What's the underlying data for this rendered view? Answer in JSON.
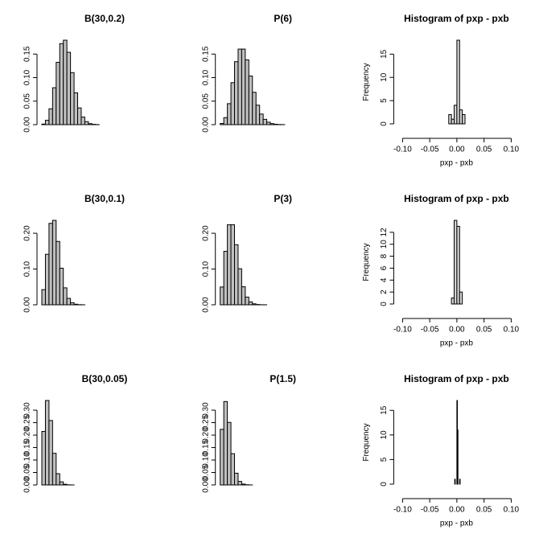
{
  "chart_data": [
    {
      "type": "bar",
      "title": "B(30,0.2)",
      "color": "#c0c0c0",
      "values": [
        0.0012,
        0.0093,
        0.0337,
        0.0785,
        0.1325,
        0.1723,
        0.1795,
        0.1538,
        0.1106,
        0.0676,
        0.0355,
        0.0161,
        0.0064,
        0.0022,
        0.0007,
        0.0002,
        0,
        0,
        0,
        0,
        0,
        0,
        0,
        0,
        0,
        0,
        0,
        0,
        0,
        0,
        0
      ],
      "ylim": [
        0,
        0.1795
      ],
      "yticks": [
        {
          "value": 0,
          "label": "0.00"
        },
        {
          "value": 0.05,
          "label": "0.05"
        },
        {
          "value": 0.1,
          "label": "0.10"
        },
        {
          "value": 0.15,
          "label": "0.15"
        }
      ]
    },
    {
      "type": "bar",
      "title": "P(6)",
      "color": "#c0c0c0",
      "values": [
        0.0025,
        0.0149,
        0.0446,
        0.0892,
        0.1339,
        0.1606,
        0.1606,
        0.1377,
        0.1033,
        0.0688,
        0.0413,
        0.0225,
        0.0113,
        0.0052,
        0.0022,
        0.0009,
        0.0003,
        0.0001,
        0,
        0,
        0,
        0,
        0,
        0,
        0,
        0,
        0,
        0,
        0,
        0,
        0
      ],
      "ylim": [
        0,
        0.1795
      ],
      "yticks": [
        {
          "value": 0,
          "label": "0.00"
        },
        {
          "value": 0.05,
          "label": "0.05"
        },
        {
          "value": 0.1,
          "label": "0.10"
        },
        {
          "value": 0.15,
          "label": "0.15"
        }
      ]
    },
    {
      "type": "histogram",
      "title": "Histogram of pxp - pxb",
      "xlabel": "pxp - pxb",
      "ylabel": "Frequency",
      "color": "#d3d3d3",
      "bins": [
        -0.015,
        -0.01,
        -0.005,
        0,
        0.005,
        0.01,
        0.015
      ],
      "values": [
        2,
        1,
        4,
        18,
        3,
        2
      ],
      "xlim": [
        -0.1,
        0.1
      ],
      "xticks": [
        {
          "value": -0.1,
          "label": "-0.10"
        },
        {
          "value": -0.05,
          "label": "-0.05"
        },
        {
          "value": 0,
          "label": "0.00"
        },
        {
          "value": 0.05,
          "label": "0.05"
        },
        {
          "value": 0.1,
          "label": "0.10"
        }
      ],
      "ylim": [
        0,
        18
      ],
      "yticks": [
        0,
        5,
        10,
        15
      ]
    },
    {
      "type": "bar",
      "title": "B(30,0.1)",
      "color": "#c0c0c0",
      "values": [
        0.0424,
        0.1413,
        0.2277,
        0.2361,
        0.1771,
        0.1023,
        0.0474,
        0.018,
        0.0058,
        0.0016,
        0.0004,
        0.0001,
        0,
        0,
        0,
        0,
        0,
        0,
        0,
        0,
        0,
        0,
        0,
        0,
        0,
        0,
        0,
        0,
        0,
        0,
        0
      ],
      "ylim": [
        0,
        0.2361
      ],
      "yticks": [
        {
          "value": 0,
          "label": "0.00"
        },
        {
          "value": 0.1,
          "label": "0.10"
        },
        {
          "value": 0.2,
          "label": "0.20"
        }
      ]
    },
    {
      "type": "bar",
      "title": "P(3)",
      "color": "#c0c0c0",
      "values": [
        0.0498,
        0.1494,
        0.224,
        0.224,
        0.168,
        0.1008,
        0.0504,
        0.0216,
        0.0081,
        0.0027,
        0.0008,
        0.0002,
        0.0001,
        0,
        0,
        0,
        0,
        0,
        0,
        0,
        0,
        0,
        0,
        0,
        0,
        0,
        0,
        0,
        0,
        0,
        0
      ],
      "ylim": [
        0,
        0.2361
      ],
      "yticks": [
        {
          "value": 0,
          "label": "0.00"
        },
        {
          "value": 0.1,
          "label": "0.10"
        },
        {
          "value": 0.2,
          "label": "0.20"
        }
      ]
    },
    {
      "type": "histogram",
      "title": "Histogram of pxp - pxb",
      "xlabel": "pxp - pxb",
      "ylabel": "Frequency",
      "color": "#d3d3d3",
      "bins": [
        -0.01,
        -0.005,
        0,
        0.005,
        0.01
      ],
      "values": [
        1,
        14,
        13,
        2
      ],
      "xlim": [
        -0.1,
        0.1
      ],
      "xticks": [
        {
          "value": -0.1,
          "label": "-0.10"
        },
        {
          "value": -0.05,
          "label": "-0.05"
        },
        {
          "value": 0,
          "label": "0.00"
        },
        {
          "value": 0.05,
          "label": "0.05"
        },
        {
          "value": 0.1,
          "label": "0.10"
        }
      ],
      "ylim": [
        0,
        14
      ],
      "yticks": [
        0,
        2,
        4,
        6,
        8,
        10,
        12
      ]
    },
    {
      "type": "bar",
      "title": "B(30,0.05)",
      "color": "#c0c0c0",
      "values": [
        0.2146,
        0.3389,
        0.2586,
        0.127,
        0.0451,
        0.0124,
        0.0027,
        0.0005,
        0.0001,
        0,
        0,
        0,
        0,
        0,
        0,
        0,
        0,
        0,
        0,
        0,
        0,
        0,
        0,
        0,
        0,
        0,
        0,
        0,
        0,
        0,
        0
      ],
      "ylim": [
        0,
        0.3389
      ],
      "yticks": [
        {
          "value": 0,
          "label": "0.00"
        },
        {
          "value": 0.05,
          "label": "0.05"
        },
        {
          "value": 0.1,
          "label": "0.10"
        },
        {
          "value": 0.15,
          "label": "0.15"
        },
        {
          "value": 0.2,
          "label": "0.20"
        },
        {
          "value": 0.25,
          "label": "0.25"
        },
        {
          "value": 0.3,
          "label": "0.30"
        }
      ]
    },
    {
      "type": "bar",
      "title": "P(1.5)",
      "color": "#c0c0c0",
      "values": [
        0.2231,
        0.3347,
        0.251,
        0.1255,
        0.0471,
        0.0141,
        0.0035,
        0.0008,
        0.0001,
        0,
        0,
        0,
        0,
        0,
        0,
        0,
        0,
        0,
        0,
        0,
        0,
        0,
        0,
        0,
        0,
        0,
        0,
        0,
        0,
        0,
        0
      ],
      "ylim": [
        0,
        0.3389
      ],
      "yticks": [
        {
          "value": 0,
          "label": "0.00"
        },
        {
          "value": 0.05,
          "label": "0.05"
        },
        {
          "value": 0.1,
          "label": "0.10"
        },
        {
          "value": 0.15,
          "label": "0.15"
        },
        {
          "value": 0.2,
          "label": "0.20"
        },
        {
          "value": 0.25,
          "label": "0.25"
        },
        {
          "value": 0.3,
          "label": "0.30"
        }
      ]
    },
    {
      "type": "histogram",
      "title": "Histogram of pxp - pxb",
      "xlabel": "pxp - pxb",
      "ylabel": "Frequency",
      "color": "#d3d3d3",
      "bins": [
        -0.004,
        -0.003,
        -0.002,
        -0.001,
        0,
        0.001,
        0.002,
        0.003,
        0.004,
        0.005,
        0.006
      ],
      "values": [
        1,
        0,
        0,
        0,
        17,
        11,
        0,
        0,
        0,
        1
      ],
      "xlim": [
        -0.1,
        0.1
      ],
      "xticks": [
        {
          "value": -0.1,
          "label": "-0.10"
        },
        {
          "value": -0.05,
          "label": "-0.05"
        },
        {
          "value": 0,
          "label": "0.00"
        },
        {
          "value": 0.05,
          "label": "0.05"
        },
        {
          "value": 0.1,
          "label": "0.10"
        }
      ],
      "ylim": [
        0,
        17
      ],
      "yticks": [
        0,
        5,
        10,
        15
      ]
    }
  ]
}
